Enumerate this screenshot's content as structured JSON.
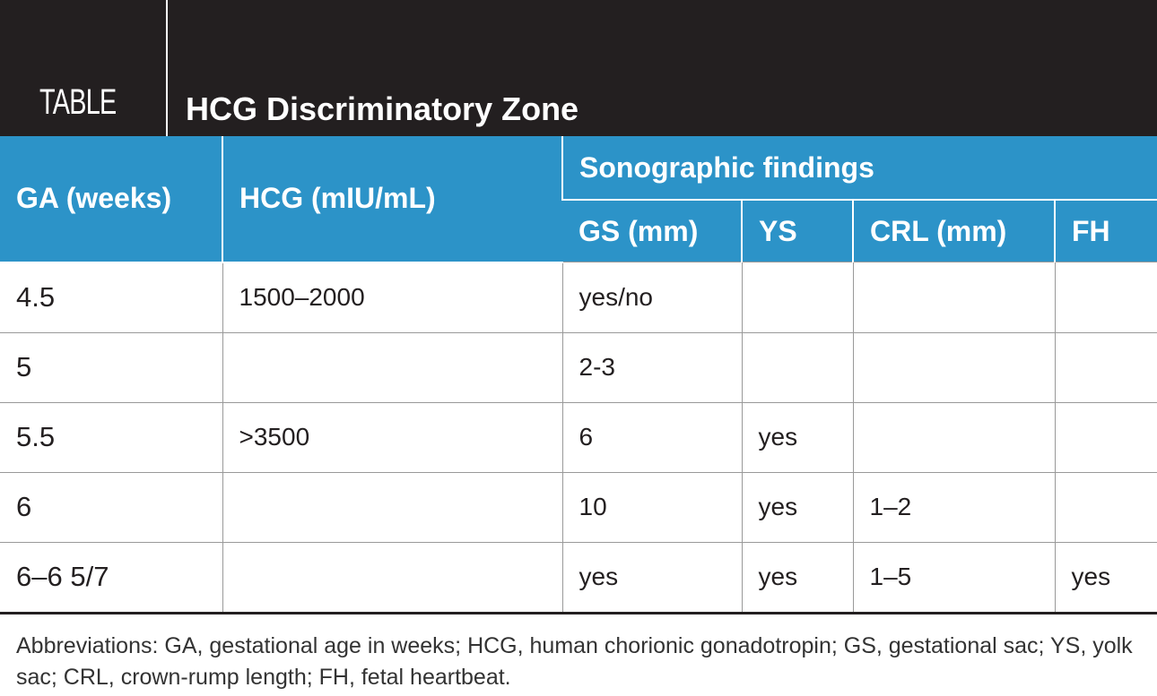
{
  "header": {
    "label": "TABLE",
    "title": "HCG Discriminatory Zone"
  },
  "table": {
    "columns": [
      "GA (weeks)",
      "HCG (mIU/mL)"
    ],
    "group": "Sonographic findings",
    "subcolumns": [
      "GS (mm)",
      "YS",
      "CRL (mm)",
      "FH"
    ],
    "rows": [
      [
        "4.5",
        "1500–2000",
        "yes/no",
        null,
        null,
        null
      ],
      [
        "5",
        null,
        "2-3",
        null,
        null,
        null
      ],
      [
        "5.5",
        ">3500",
        "6",
        "yes",
        null,
        null
      ],
      [
        "6",
        null,
        "10",
        "yes",
        "1–2",
        null
      ],
      [
        "6–6 5/7",
        null,
        "yes",
        "yes",
        "1–5",
        "yes"
      ]
    ]
  },
  "footnote": "Abbreviations: GA, gestational age in weeks; HCG, human chorionic gonadotropin; GS, gestational sac; YS, yolk sac; CRL, crown-rump length; FH, fetal heartbeat."
}
